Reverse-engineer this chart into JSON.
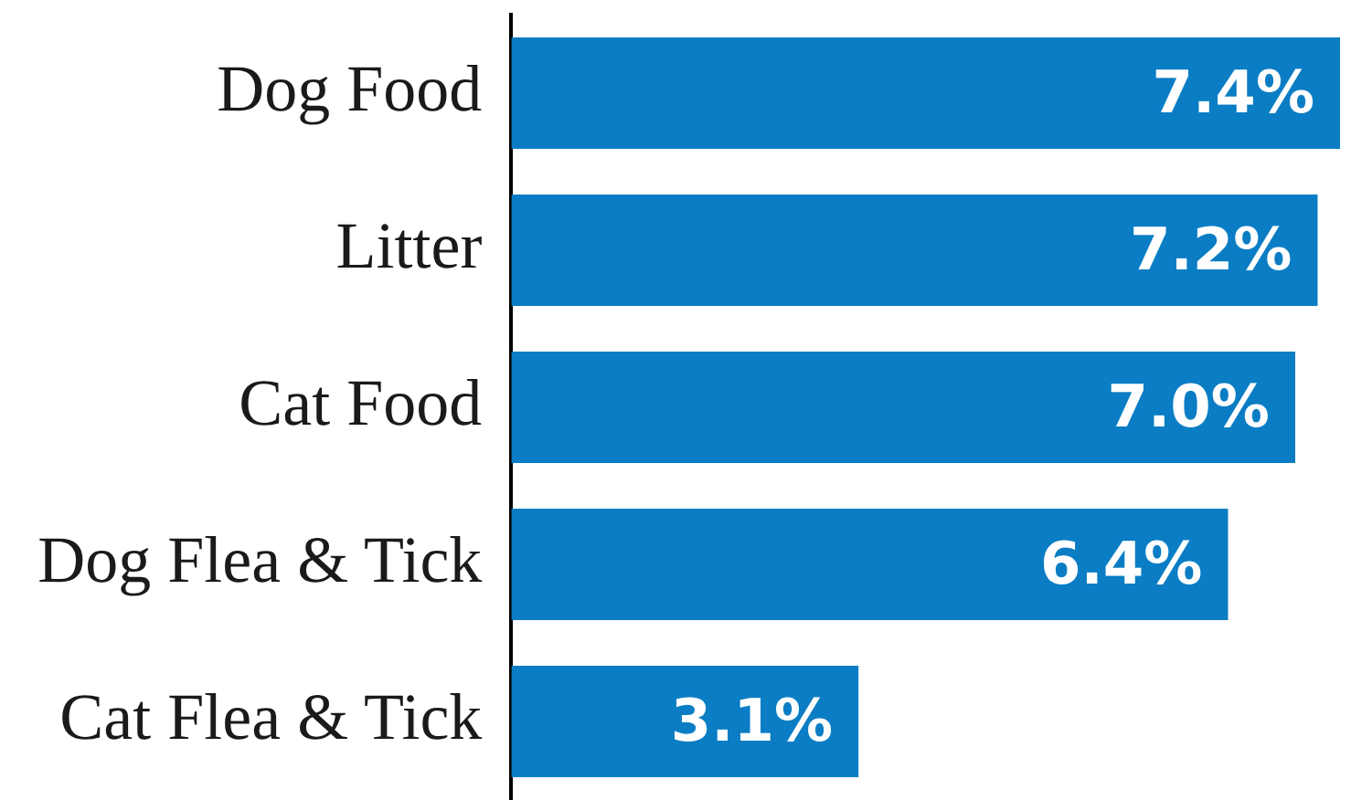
{
  "chart_data": {
    "type": "bar",
    "orientation": "horizontal",
    "categories": [
      "Dog Food",
      "Litter",
      "Cat Food",
      "Dog Flea & Tick",
      "Cat Flea & Tick"
    ],
    "values": [
      7.4,
      7.2,
      7.0,
      6.4,
      3.1
    ],
    "color": "#0a7dc4",
    "value_labels": [
      "7.4%",
      "7.2%",
      "7.0%",
      "6.4%",
      "3.1%"
    ],
    "legend": false
  }
}
